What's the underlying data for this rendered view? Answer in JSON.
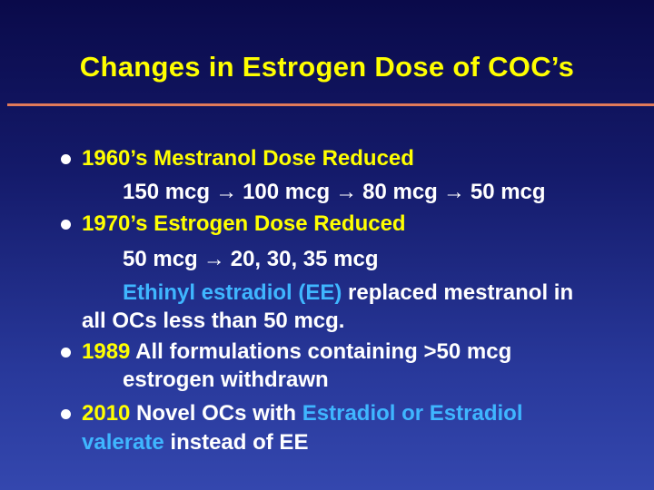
{
  "title": "Changes in Estrogen Dose of COC’s",
  "arrow_glyph": "→",
  "colors": {
    "accent_yellow": "#ffff00",
    "accent_blue": "#3fb6ff",
    "rule": "#e07a5a"
  },
  "b1": {
    "head": "1960’s Mestranol Dose Reduced",
    "d1": "150 mcg",
    "d2": "100 mcg",
    "d3": "80 mcg",
    "d4": "50 mcg"
  },
  "b2": {
    "head": "1970’s  Estrogen Dose Reduced",
    "d1": "50 mcg",
    "d2": "20, 30, 35 mcg",
    "ee": "Ethinyl estradiol (EE)",
    "rest1": " replaced mestranol in",
    "rest2": "all  OCs less than 50 mcg."
  },
  "b3": {
    "year": "1989",
    "rest1": " All formulations containing  >50 mcg",
    "rest2": "estrogen withdrawn"
  },
  "b4": {
    "year": "2010",
    "mid": " Novel OCs with ",
    "e1": "Estradiol or Estradiol",
    "e2": "valerate",
    "rest": " instead of EE"
  }
}
